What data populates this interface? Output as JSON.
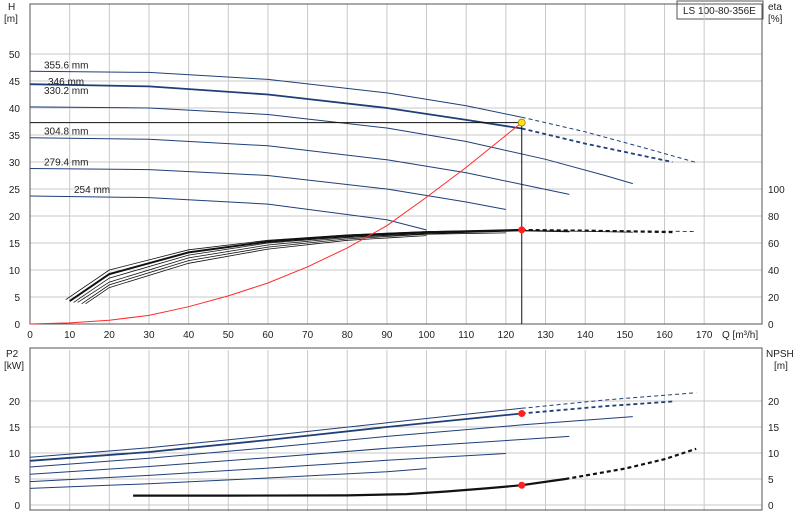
{
  "model_label": "LS 100-80-356E",
  "colors": {
    "curve_blue": "#1f3f78",
    "system_curve": "#ff2a2a",
    "efficiency_black": "#111111",
    "marker_yellow": "#ffe11a",
    "marker_red": "#ff2020",
    "grid": "#c9c9c9"
  },
  "chart_data": [
    {
      "type": "line",
      "panel": "head-efficiency",
      "ylabel_left": "H",
      "ylabel_left_unit": "[m]",
      "ylabel_right": "eta",
      "ylabel_right_unit": "[%]",
      "xlabel": "Q [m³/h]",
      "xlim": [
        0,
        175
      ],
      "ylim": [
        0,
        50
      ],
      "x_ticks": [
        0,
        10,
        20,
        30,
        40,
        50,
        60,
        70,
        80,
        90,
        100,
        110,
        120,
        130,
        140,
        150,
        160,
        170
      ],
      "y_ticks": [
        0,
        5,
        10,
        15,
        20,
        25,
        30,
        35,
        40,
        45,
        50
      ],
      "eta_ticks": [
        0,
        20,
        40,
        60,
        80,
        100
      ],
      "eta_range": [
        0,
        100
      ],
      "grid": true,
      "impeller_curves": [
        {
          "name": "355.6 mm",
          "x": [
            0,
            30,
            60,
            90,
            110,
            124,
            140,
            155,
            168
          ],
          "y": [
            46.8,
            46.6,
            45.3,
            42.8,
            40.4,
            38.3,
            35.6,
            32.6,
            29.9
          ],
          "dashed_from": 124
        },
        {
          "name": "346 mm",
          "x": [
            0,
            30,
            60,
            90,
            110,
            124,
            140,
            162
          ],
          "y": [
            44.4,
            44.0,
            42.5,
            40.0,
            37.8,
            36.2,
            33.4,
            30.0
          ],
          "bold": true,
          "dashed_from": 124
        },
        {
          "name": "330.2 mm",
          "x": [
            0,
            30,
            60,
            90,
            110,
            130,
            145,
            152
          ],
          "y": [
            40.2,
            40.0,
            38.8,
            36.3,
            33.8,
            30.5,
            27.5,
            26.0
          ]
        },
        {
          "name": "304.8 mm",
          "x": [
            0,
            30,
            60,
            90,
            110,
            125,
            136
          ],
          "y": [
            34.5,
            34.2,
            33.0,
            30.4,
            28.0,
            25.7,
            24.0
          ]
        },
        {
          "name": "279.4 mm",
          "x": [
            0,
            30,
            60,
            90,
            110,
            120
          ],
          "y": [
            28.8,
            28.6,
            27.5,
            25.0,
            22.6,
            21.2
          ]
        },
        {
          "name": "254 mm",
          "x": [
            0,
            30,
            60,
            90,
            100
          ],
          "y": [
            23.7,
            23.4,
            22.2,
            19.3,
            17.4
          ]
        }
      ],
      "system_curve": {
        "x": [
          0,
          10,
          20,
          30,
          40,
          50,
          60,
          70,
          80,
          90,
          100,
          110,
          124
        ],
        "y": [
          0,
          0.2,
          0.7,
          1.6,
          3.2,
          5.2,
          7.6,
          10.6,
          14.1,
          18.2,
          23.5,
          29.0,
          37.3
        ]
      },
      "efficiency_curves": [
        {
          "x": [
            9,
            20,
            40,
            60,
            80,
            100,
            124,
            140,
            168
          ],
          "eta": [
            18,
            40,
            55,
            62,
            66,
            68.5,
            69.7,
            69.5,
            68.5
          ],
          "dashed_from": 124
        },
        {
          "x": [
            10,
            20,
            40,
            60,
            80,
            100,
            124,
            140,
            162
          ],
          "eta": [
            17,
            37,
            53,
            61,
            65.5,
            68,
            69.7,
            69.2,
            68
          ],
          "bold": true,
          "dashed_from": 124
        },
        {
          "x": [
            11,
            20,
            40,
            60,
            80,
            100,
            124,
            140,
            152
          ],
          "eta": [
            16,
            34,
            51,
            60,
            64.5,
            67.5,
            69.3,
            68.6,
            68
          ]
        },
        {
          "x": [
            12,
            20,
            40,
            60,
            80,
            100,
            124,
            136
          ],
          "eta": [
            16,
            31,
            49,
            58.5,
            64,
            67,
            69,
            68.3
          ]
        },
        {
          "x": [
            13,
            20,
            40,
            60,
            80,
            100,
            120
          ],
          "eta": [
            15,
            29,
            47,
            57,
            63,
            66.5,
            67.5
          ]
        },
        {
          "x": [
            14,
            20,
            40,
            60,
            80,
            100
          ],
          "eta": [
            15,
            27,
            45,
            55.5,
            62,
            65.5
          ]
        }
      ],
      "operating_point": {
        "Q": 124,
        "H": 37.3,
        "eta": 69.7
      }
    },
    {
      "type": "line",
      "panel": "power-npsh",
      "ylabel_left": "P2",
      "ylabel_left_unit": "[kW]",
      "ylabel_right": "NPSH",
      "ylabel_right_unit": "[m]",
      "xlim": [
        0,
        175
      ],
      "ylim": [
        0,
        24
      ],
      "y_ticks": [
        0,
        5,
        10,
        15,
        20
      ],
      "npsh_ticks": [
        0,
        5,
        10,
        15,
        20
      ],
      "grid": true,
      "power_curves": [
        {
          "x": [
            0,
            30,
            60,
            90,
            124,
            145,
            168
          ],
          "y": [
            9.2,
            11.0,
            13.3,
            15.8,
            18.6,
            20.2,
            21.6
          ],
          "dashed_from": 124
        },
        {
          "x": [
            0,
            30,
            60,
            90,
            124,
            145,
            162
          ],
          "y": [
            8.5,
            10.2,
            12.5,
            15.0,
            17.6,
            19.0,
            19.9
          ],
          "bold": true,
          "dashed_from": 124
        },
        {
          "x": [
            0,
            30,
            60,
            90,
            124,
            152
          ],
          "y": [
            7.3,
            9.0,
            11.0,
            13.2,
            15.4,
            17.0
          ]
        },
        {
          "x": [
            0,
            30,
            60,
            90,
            124,
            136
          ],
          "y": [
            5.9,
            7.4,
            9.1,
            10.9,
            12.6,
            13.2
          ]
        },
        {
          "x": [
            0,
            30,
            60,
            90,
            120
          ],
          "y": [
            4.5,
            5.7,
            7.1,
            8.6,
            9.9
          ]
        },
        {
          "x": [
            0,
            30,
            60,
            90,
            100
          ],
          "y": [
            3.2,
            4.1,
            5.2,
            6.4,
            7.0
          ]
        }
      ],
      "npsh_curve": {
        "x": [
          26,
          50,
          80,
          95,
          105,
          115,
          124,
          135,
          150,
          160,
          168
        ],
        "y": [
          1.8,
          1.8,
          1.85,
          2.1,
          2.6,
          3.2,
          3.8,
          5.0,
          7.0,
          8.8,
          10.8
        ],
        "bold": true,
        "dashed_from": 135
      },
      "operating_point": {
        "Q": 124,
        "P2": 17.6,
        "NPSH": 3.8
      }
    }
  ]
}
